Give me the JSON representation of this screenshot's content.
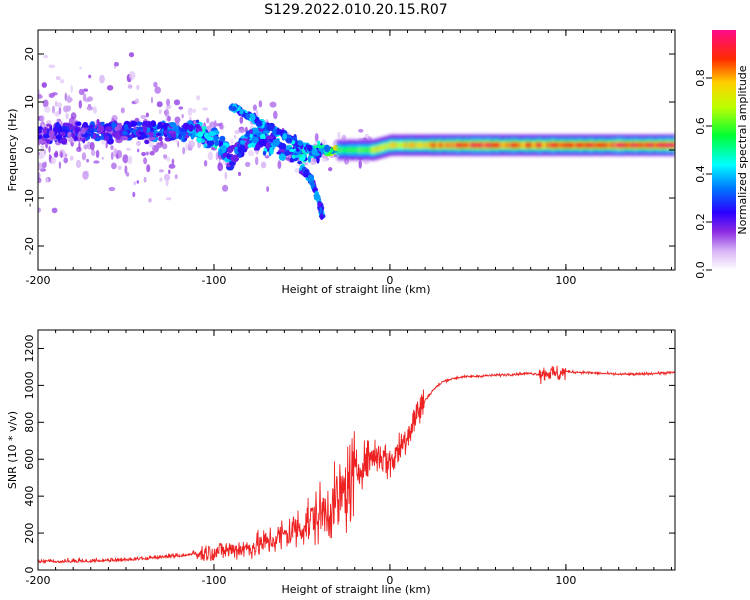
{
  "title": "S129.2022.010.20.15.R07",
  "colors": {
    "snr_line": "#ee2222",
    "ridge_peak": "#e8102a",
    "background": "#ffffff"
  },
  "chart_data": [
    {
      "type": "heatmap",
      "xlabel": "Height of straight line (km)",
      "ylabel": "Frequency (Hz)",
      "xlim": [
        -200,
        162
      ],
      "ylim": [
        -25,
        25
      ],
      "xticks": [
        "-200",
        "-100",
        "0",
        "100"
      ],
      "yticks": [
        "-20",
        "-10",
        "0",
        "10",
        "20"
      ],
      "colorbar": {
        "label": "Normalized spectral amplitude",
        "range": [
          0,
          1
        ],
        "ticks": [
          "0.0",
          "0.2",
          "0.4",
          "0.6",
          "0.8"
        ],
        "colormap": "rainbow (white-violet-blue-cyan-green-yellow-red-magenta)"
      },
      "ridge": {
        "x": [
          -200,
          -175,
          -150,
          -125,
          -110,
          -100,
          -90,
          -80,
          -70,
          -60,
          -50,
          -40,
          -30,
          -20,
          -10,
          0,
          20,
          50,
          80,
          100,
          130,
          162
        ],
        "frequency": [
          3,
          4,
          4,
          4,
          4,
          2,
          -2,
          3,
          2,
          0,
          -1,
          0,
          0,
          0,
          0,
          1,
          1,
          1,
          1,
          1,
          1,
          1
        ],
        "amplitude": [
          0.2,
          0.25,
          0.25,
          0.3,
          0.35,
          0.4,
          0.3,
          0.35,
          0.35,
          0.35,
          0.4,
          0.4,
          0.6,
          0.6,
          0.7,
          0.75,
          0.85,
          0.95,
          0.9,
          0.9,
          0.95,
          0.95
        ]
      },
      "upper_branch": {
        "x": [
          -90,
          -80,
          -70,
          -60,
          -50,
          -40
        ],
        "frequency": [
          9,
          7,
          5,
          3,
          1,
          -1
        ]
      },
      "lower_branch": {
        "x": [
          -50,
          -45,
          -40,
          -38
        ],
        "frequency": [
          -4,
          -6,
          -11,
          -15
        ]
      }
    },
    {
      "type": "line",
      "xlabel": "Height of straight line (km)",
      "ylabel": "SNR (10 * v/v)",
      "xlim": [
        -200,
        162
      ],
      "ylim": [
        0,
        1300
      ],
      "xticks": [
        "-200",
        "-100",
        "0",
        "100"
      ],
      "yticks": [
        "0",
        "200",
        "400",
        "600",
        "800",
        "1000",
        "1200"
      ],
      "series": [
        {
          "x": [
            -200,
            -180,
            -160,
            -140,
            -120,
            -110,
            -100,
            -90,
            -80,
            -70,
            -60,
            -50,
            -45,
            -40,
            -35,
            -30,
            -25,
            -20,
            -15,
            -10,
            -5,
            0,
            5,
            10,
            15,
            20,
            25,
            30,
            35,
            40,
            50,
            60,
            70,
            80,
            85,
            90,
            95,
            100,
            110,
            120,
            130,
            140,
            150,
            162
          ],
          "values": [
            40,
            40,
            45,
            55,
            70,
            85,
            100,
            110,
            120,
            150,
            190,
            240,
            270,
            300,
            330,
            370,
            430,
            520,
            580,
            620,
            620,
            580,
            650,
            740,
            840,
            920,
            980,
            1020,
            1035,
            1045,
            1050,
            1055,
            1060,
            1065,
            1060,
            1070,
            1060,
            1075,
            1070,
            1065,
            1060,
            1060,
            1065,
            1070
          ]
        }
      ]
    }
  ]
}
